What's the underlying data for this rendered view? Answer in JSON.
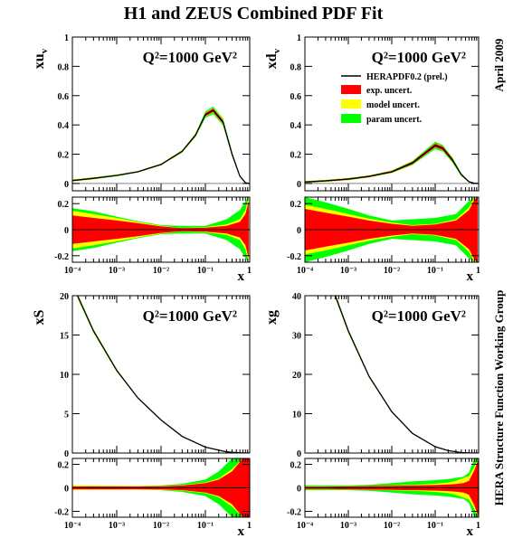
{
  "figure": {
    "title": "H1 and ZEUS Combined PDF Fit",
    "date_note": "April 2009",
    "group_note": "HERA Structure Function Working Group"
  },
  "legend": {
    "central": "HERAPDF0.2 (prel.)",
    "exp": "exp. uncert.",
    "model": "model uncert.",
    "param": "param uncert."
  },
  "colors": {
    "central": "#000000",
    "exp": "#ff0000",
    "model": "#ffff00",
    "param": "#00ff00",
    "axis": "#000000",
    "zero_line": "#808080"
  },
  "chart_data": [
    {
      "id": "xuv",
      "type": "line",
      "ylabel_main": "xu",
      "ylabel_sub": "v",
      "annotation": "Q²=1000 GeV²",
      "xlabel": "x",
      "x_scale": "log",
      "xlim": [
        0.0001,
        1
      ],
      "ylim": [
        -0.05,
        1
      ],
      "yticks": [
        0,
        0.2,
        0.4,
        0.6,
        0.8,
        1
      ],
      "ytick_labels": [
        "0",
        "0.2",
        "0.4",
        "0.6",
        "0.8",
        "1"
      ],
      "x": [
        0.0001,
        0.0003,
        0.001,
        0.003,
        0.01,
        0.03,
        0.06,
        0.1,
        0.15,
        0.25,
        0.4,
        0.6,
        0.8,
        1
      ],
      "central": [
        0.02,
        0.035,
        0.055,
        0.08,
        0.13,
        0.22,
        0.33,
        0.47,
        0.5,
        0.42,
        0.2,
        0.05,
        0.005,
        0
      ],
      "exp_band": [
        0.004,
        0.004,
        0.003,
        0.003,
        0.004,
        0.005,
        0.007,
        0.01,
        0.012,
        0.012,
        0.008,
        0.003,
        0.001,
        0
      ],
      "model_band": [
        0.006,
        0.006,
        0.005,
        0.004,
        0.005,
        0.006,
        0.009,
        0.013,
        0.016,
        0.016,
        0.011,
        0.004,
        0.001,
        0
      ],
      "param_band": [
        0.007,
        0.007,
        0.006,
        0.005,
        0.006,
        0.008,
        0.012,
        0.022,
        0.026,
        0.024,
        0.016,
        0.006,
        0.002,
        0
      ],
      "ratio": {
        "ylim": [
          -0.25,
          0.25
        ],
        "yticks": [
          -0.2,
          0,
          0.2
        ],
        "ytick_labels": [
          "-0.2",
          "0",
          "0.2"
        ],
        "x": [
          0.0001,
          0.0003,
          0.001,
          0.003,
          0.01,
          0.03,
          0.1,
          0.3,
          0.6,
          0.8,
          0.95
        ],
        "exp_band": [
          0.11,
          0.09,
          0.07,
          0.05,
          0.025,
          0.012,
          0.015,
          0.03,
          0.06,
          0.12,
          0.22
        ],
        "model_band": [
          0.145,
          0.12,
          0.09,
          0.06,
          0.03,
          0.014,
          0.02,
          0.04,
          0.08,
          0.15,
          0.25
        ],
        "param_band": [
          0.165,
          0.14,
          0.1,
          0.065,
          0.035,
          0.03,
          0.03,
          0.08,
          0.15,
          0.22,
          0.25
        ],
        "xtick_labels": [
          "10⁻⁴",
          "10⁻³",
          "10⁻²",
          "10⁻¹",
          "1"
        ]
      }
    },
    {
      "id": "xdv",
      "type": "line",
      "ylabel_main": "xd",
      "ylabel_sub": "v",
      "annotation": "Q²=1000 GeV²",
      "xlabel": "x",
      "x_scale": "log",
      "xlim": [
        0.0001,
        1
      ],
      "ylim": [
        -0.05,
        1
      ],
      "yticks": [
        0,
        0.2,
        0.4,
        0.6,
        0.8,
        1
      ],
      "ytick_labels": [
        "0",
        "0.2",
        "0.4",
        "0.6",
        "0.8",
        "1"
      ],
      "x": [
        0.0001,
        0.0003,
        0.001,
        0.003,
        0.01,
        0.03,
        0.06,
        0.1,
        0.15,
        0.25,
        0.4,
        0.6,
        0.8,
        1
      ],
      "central": [
        0.01,
        0.018,
        0.03,
        0.048,
        0.08,
        0.14,
        0.21,
        0.26,
        0.24,
        0.16,
        0.06,
        0.012,
        0.001,
        0
      ],
      "exp_band": [
        0.004,
        0.005,
        0.005,
        0.005,
        0.006,
        0.008,
        0.01,
        0.012,
        0.012,
        0.01,
        0.005,
        0.002,
        0.001,
        0
      ],
      "model_band": [
        0.005,
        0.006,
        0.006,
        0.006,
        0.007,
        0.009,
        0.012,
        0.014,
        0.014,
        0.012,
        0.006,
        0.002,
        0.001,
        0
      ],
      "param_band": [
        0.006,
        0.007,
        0.007,
        0.007,
        0.009,
        0.014,
        0.02,
        0.025,
        0.022,
        0.018,
        0.01,
        0.004,
        0.001,
        0
      ],
      "ratio": {
        "ylim": [
          -0.25,
          0.25
        ],
        "yticks": [
          -0.2,
          0,
          0.2
        ],
        "ytick_labels": [
          "-0.2",
          "0",
          "0.2"
        ],
        "x": [
          0.0001,
          0.0003,
          0.001,
          0.003,
          0.01,
          0.03,
          0.1,
          0.3,
          0.6,
          0.8,
          0.95
        ],
        "exp_band": [
          0.16,
          0.13,
          0.1,
          0.07,
          0.045,
          0.03,
          0.04,
          0.07,
          0.15,
          0.23,
          0.25
        ],
        "model_band": [
          0.19,
          0.16,
          0.12,
          0.085,
          0.055,
          0.035,
          0.045,
          0.08,
          0.17,
          0.25,
          0.25
        ],
        "param_band": [
          0.25,
          0.21,
          0.16,
          0.11,
          0.07,
          0.08,
          0.09,
          0.12,
          0.22,
          0.25,
          0.25
        ],
        "xtick_labels": [
          "10⁻⁴",
          "10⁻³",
          "10⁻²",
          "10⁻¹",
          "1"
        ]
      }
    },
    {
      "id": "xS",
      "type": "line",
      "ylabel_main": "xS",
      "ylabel_sub": "",
      "annotation": "Q²=1000 GeV²",
      "xlabel": "x",
      "x_scale": "log",
      "xlim": [
        0.0001,
        1
      ],
      "ylim": [
        0,
        20
      ],
      "yticks": [
        0,
        5,
        10,
        15,
        20
      ],
      "ytick_labels": [
        "0",
        "5",
        "10",
        "15",
        "20"
      ],
      "x": [
        0.00013,
        0.0003,
        0.001,
        0.003,
        0.01,
        0.03,
        0.1,
        0.3,
        0.6,
        1
      ],
      "central": [
        20,
        15.5,
        10.5,
        7.0,
        4.2,
        2.1,
        0.75,
        0.15,
        0.02,
        0
      ],
      "exp_band": [
        0.15,
        0.12,
        0.08,
        0.05,
        0.03,
        0.02,
        0.01,
        0.005,
        0.002,
        0
      ],
      "model_band": [
        0.25,
        0.2,
        0.13,
        0.08,
        0.05,
        0.03,
        0.015,
        0.007,
        0.003,
        0
      ],
      "param_band": [
        0.3,
        0.24,
        0.15,
        0.1,
        0.06,
        0.04,
        0.02,
        0.01,
        0.004,
        0
      ],
      "ratio": {
        "ylim": [
          -0.25,
          0.25
        ],
        "yticks": [
          -0.2,
          0,
          0.2
        ],
        "ytick_labels": [
          "-0.2",
          "0",
          "0.2"
        ],
        "x": [
          0.0001,
          0.0003,
          0.001,
          0.003,
          0.01,
          0.03,
          0.1,
          0.2,
          0.4,
          0.7,
          1
        ],
        "exp_band": [
          0.012,
          0.012,
          0.012,
          0.012,
          0.014,
          0.02,
          0.04,
          0.07,
          0.14,
          0.25,
          0.25
        ],
        "model_band": [
          0.02,
          0.018,
          0.016,
          0.015,
          0.017,
          0.024,
          0.045,
          0.08,
          0.16,
          0.25,
          0.25
        ],
        "param_band": [
          0.02,
          0.018,
          0.016,
          0.015,
          0.02,
          0.035,
          0.07,
          0.14,
          0.25,
          0.25,
          0.25
        ],
        "xtick_labels": [
          "10⁻⁴",
          "10⁻³",
          "10⁻²",
          "10⁻¹",
          "1"
        ]
      }
    },
    {
      "id": "xg",
      "type": "line",
      "ylabel_main": "xg",
      "ylabel_sub": "",
      "annotation": "Q²=1000 GeV²",
      "xlabel": "x",
      "x_scale": "log",
      "xlim": [
        0.0001,
        1
      ],
      "ylim": [
        0,
        40
      ],
      "yticks": [
        0,
        10,
        20,
        30,
        40
      ],
      "ytick_labels": [
        "0",
        "10",
        "20",
        "30",
        "40"
      ],
      "x": [
        0.0005,
        0.001,
        0.003,
        0.01,
        0.03,
        0.1,
        0.2,
        0.4,
        0.7,
        1
      ],
      "central": [
        40,
        31,
        19.5,
        10.5,
        5.0,
        1.6,
        0.6,
        0.12,
        0.01,
        0
      ],
      "exp_band": [
        0.3,
        0.25,
        0.15,
        0.1,
        0.06,
        0.03,
        0.02,
        0.01,
        0.002,
        0
      ],
      "model_band": [
        0.5,
        0.4,
        0.25,
        0.15,
        0.08,
        0.04,
        0.025,
        0.012,
        0.003,
        0
      ],
      "param_band": [
        0.6,
        0.5,
        0.3,
        0.18,
        0.1,
        0.05,
        0.03,
        0.015,
        0.004,
        0
      ],
      "ratio": {
        "ylim": [
          -0.25,
          0.25
        ],
        "yticks": [
          -0.2,
          0,
          0.2
        ],
        "ytick_labels": [
          "-0.2",
          "0",
          "0.2"
        ],
        "x": [
          0.0001,
          0.0003,
          0.001,
          0.003,
          0.01,
          0.03,
          0.1,
          0.2,
          0.3,
          0.45,
          0.6,
          0.8,
          1
        ],
        "exp_band": [
          0.01,
          0.01,
          0.012,
          0.015,
          0.017,
          0.02,
          0.024,
          0.028,
          0.033,
          0.04,
          0.06,
          0.15,
          0.25
        ],
        "model_band": [
          0.012,
          0.012,
          0.014,
          0.017,
          0.02,
          0.025,
          0.035,
          0.045,
          0.06,
          0.085,
          0.1,
          0.18,
          0.25
        ],
        "param_band": [
          0.02,
          0.02,
          0.02,
          0.025,
          0.04,
          0.055,
          0.065,
          0.075,
          0.085,
          0.095,
          0.13,
          0.25,
          0.25
        ],
        "xtick_labels": [
          "10⁻⁴",
          "10⁻³",
          "10⁻²",
          "10⁻¹",
          "1"
        ]
      }
    }
  ]
}
